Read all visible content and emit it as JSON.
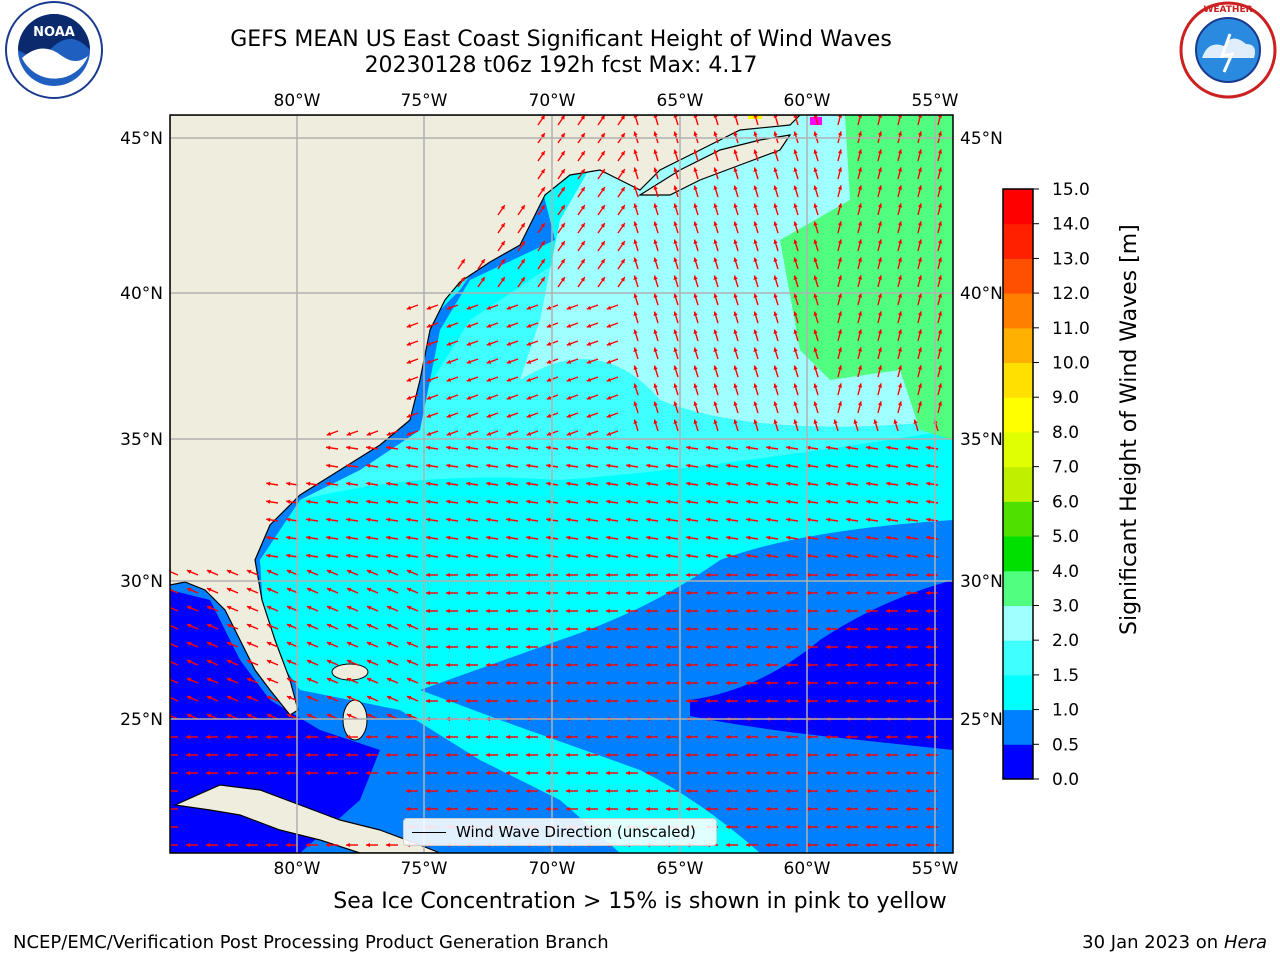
{
  "header": {
    "title_line1": "GEFS MEAN US East Coast Significant Height of Wind Waves",
    "title_line2": "20230128 t06z 192h fcst   Max: 4.17"
  },
  "logos": {
    "left": "NOAA",
    "right": "NATIONAL WEATHER SERVICE"
  },
  "map": {
    "lon_labels": [
      "80°W",
      "75°W",
      "70°W",
      "65°W",
      "60°W",
      "55°W"
    ],
    "lat_labels": [
      "45°N",
      "40°N",
      "35°N",
      "30°N",
      "25°N"
    ],
    "legend_label": "Wind Wave Direction (unscaled)",
    "arrow_color": "#ff0000",
    "land_color": "#efedde"
  },
  "colorbar": {
    "label": "Significant Height of Wind Waves [m]",
    "ticks": [
      "0.0",
      "0.5",
      "1.0",
      "1.5",
      "2.0",
      "3.0",
      "4.0",
      "5.0",
      "6.0",
      "7.0",
      "8.0",
      "9.0",
      "10.0",
      "11.0",
      "12.0",
      "13.0",
      "14.0",
      "15.0"
    ],
    "colors": [
      "#0000ff",
      "#0080ff",
      "#00ffff",
      "#40ffff",
      "#a0ffff",
      "#50ff80",
      "#00e000",
      "#50e000",
      "#c0f000",
      "#e0ff00",
      "#ffff00",
      "#ffe000",
      "#ffb000",
      "#ff8000",
      "#ff5000",
      "#ff2000",
      "#ff0000"
    ]
  },
  "notes": {
    "sea_ice": "Sea Ice Concentration > 15% is shown in pink to yellow"
  },
  "footer": {
    "left": "NCEP/EMC/Verification Post Processing Product Generation Branch",
    "date": "30 Jan 2023 on",
    "host": "Hera"
  }
}
